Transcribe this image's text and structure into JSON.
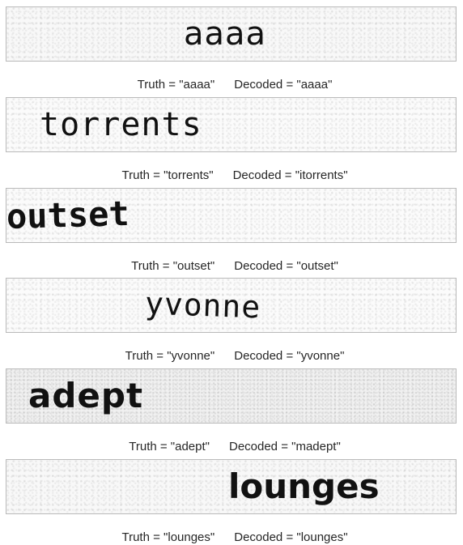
{
  "samples": [
    {
      "image_text": "aaaa",
      "truth_label": "Truth = \"aaaa\"",
      "decoded_label": "Decoded = \"aaaa\""
    },
    {
      "image_text": "torrents",
      "truth_label": "Truth = \"torrents\"",
      "decoded_label": "Decoded = \"itorrents\""
    },
    {
      "image_text": "outset",
      "truth_label": "Truth = \"outset\"",
      "decoded_label": "Decoded = \"outset\""
    },
    {
      "image_text": "yvonne",
      "truth_label": "Truth = \"yvonne\"",
      "decoded_label": "Decoded = \"yvonne\""
    },
    {
      "image_text": "adept",
      "truth_label": "Truth = \"adept\"",
      "decoded_label": "Decoded = \"madept\""
    },
    {
      "image_text": "lounges",
      "truth_label": "Truth = \"lounges\"",
      "decoded_label": "Decoded = \"lounges\""
    }
  ]
}
